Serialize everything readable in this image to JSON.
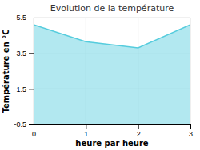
{
  "chart_data": {
    "type": "area",
    "title": "Evolution de la température",
    "x_label": "heure par heure",
    "y_label": "Température en °C",
    "x": [
      0,
      1,
      2,
      3
    ],
    "values": [
      5.1,
      4.15,
      3.8,
      5.1
    ],
    "color": "#55ccdd",
    "xlim": [
      0,
      3
    ],
    "ylim": [
      -0.5,
      5.5
    ],
    "xticks": [
      0,
      1,
      2,
      3
    ],
    "yticks": [
      -0.5,
      1.5,
      3.5,
      5.5
    ],
    "grid": true
  }
}
